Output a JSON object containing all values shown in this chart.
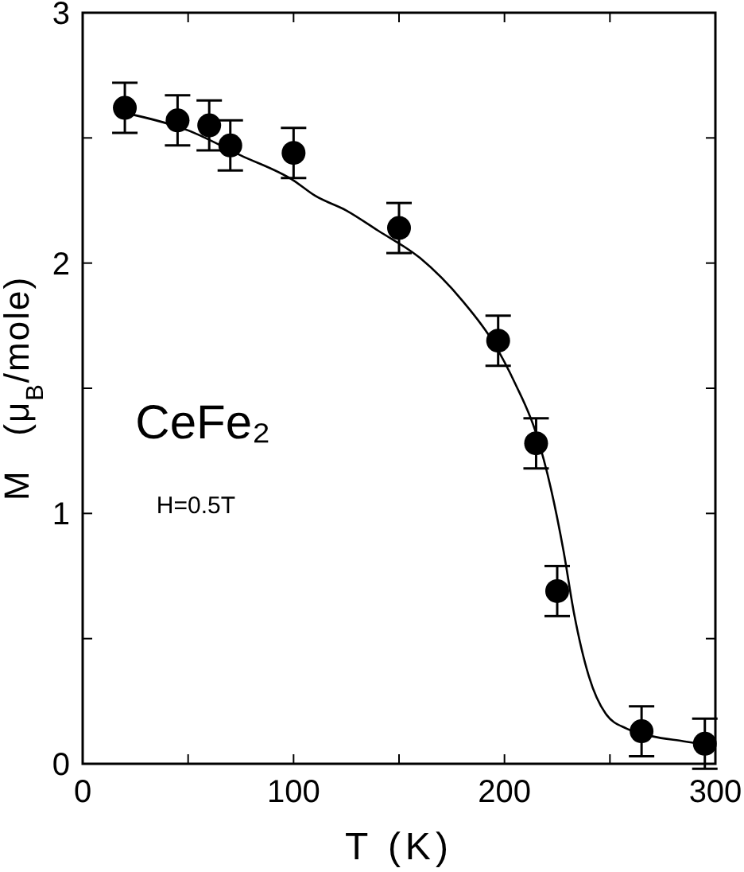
{
  "chart_data": {
    "type": "scatter",
    "xlabel": "T  (K)",
    "ylabel": "M   (μ$_{B}$/mole)",
    "xlim": [
      0,
      300
    ],
    "ylim": [
      0,
      3
    ],
    "xticks": [
      0,
      {
        "value": 50,
        "label": null
      },
      100,
      {
        "value": 150,
        "label": null
      },
      200,
      {
        "value": 250,
        "label": null
      },
      300
    ],
    "yticks": [
      0,
      {
        "value": 0.5,
        "label": null
      },
      1,
      {
        "value": 1.5,
        "label": null
      },
      2,
      {
        "value": 2.5,
        "label": null
      },
      3
    ],
    "annotations": [
      "CeFe₂",
      "H=0.5T"
    ],
    "marker": "circle",
    "grid": false,
    "series": [
      {
        "color": "#000000",
        "x": [
          20,
          45,
          60,
          70,
          100,
          150,
          197,
          215,
          225,
          265,
          295
        ],
        "values": [
          2.62,
          2.57,
          2.55,
          2.47,
          2.44,
          2.14,
          1.69,
          1.28,
          0.69,
          0.13,
          0.08
        ],
        "errors": [
          0.1,
          0.1,
          0.1,
          0.1,
          0.1,
          0.1,
          0.1,
          0.1,
          0.1,
          0.1,
          0.1
        ]
      },
      {
        "type": "line",
        "color": "#000000",
        "marker": "none",
        "x": [
          20,
          50,
          75,
          100,
          110,
          125,
          140,
          160,
          180,
          195,
          205,
          215,
          222,
          228,
          233,
          240,
          248,
          258,
          270,
          285,
          300
        ],
        "values": [
          2.6,
          2.53,
          2.43,
          2.33,
          2.27,
          2.21,
          2.13,
          2.02,
          1.85,
          1.68,
          1.52,
          1.32,
          1.1,
          0.85,
          0.6,
          0.35,
          0.2,
          0.14,
          0.11,
          0.09,
          0.07
        ]
      }
    ]
  }
}
